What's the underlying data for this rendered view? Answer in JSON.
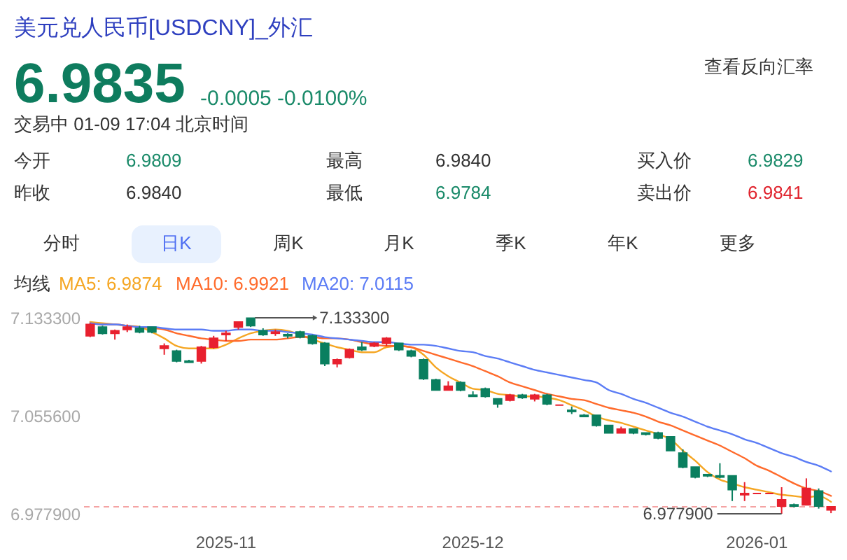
{
  "chart_data": [
    {
      "type": "other",
      "title": "美元兑人民币[USDCNY]_外汇",
      "annotations": [
        "6.9835",
        "-0.0005 -0.0100%",
        "交易中 01-09 17:04 北京时间",
        "查看反向汇率",
        "今开",
        "6.9809",
        "最高",
        "6.9840",
        "买入价",
        "6.9829",
        "昨收",
        "6.9840",
        "最低",
        "6.9784",
        "卖出价",
        "6.9841",
        "分时",
        "日K",
        "周K",
        "月K",
        "季K",
        "年K",
        "更多"
      ]
    },
    {
      "type": "candlestick",
      "categories": [
        null,
        null,
        null,
        null,
        null,
        null,
        null,
        null,
        null,
        null,
        null,
        "2025-11",
        null,
        null,
        null,
        null,
        null,
        null,
        null,
        null,
        null,
        null,
        null,
        null,
        null,
        null,
        null,
        null,
        null,
        null,
        null,
        "2025-12",
        null,
        null,
        null,
        null,
        null,
        null,
        null,
        null,
        null,
        null,
        null,
        null,
        null,
        null,
        null,
        null,
        null,
        null,
        null,
        null,
        null,
        null,
        "2026-01",
        null,
        null,
        null,
        null,
        null,
        null
      ],
      "ohlc": [
        [
          7.119,
          7.129,
          7.118,
          7.128
        ],
        [
          7.126,
          7.127,
          7.12,
          7.121
        ],
        [
          7.121,
          7.124,
          7.116,
          7.123
        ],
        [
          7.124,
          7.128,
          7.122,
          7.126
        ],
        [
          7.125,
          7.127,
          7.121,
          7.122
        ],
        [
          7.126,
          7.126,
          7.121,
          7.122
        ],
        [
          7.109,
          7.113,
          7.104,
          7.111
        ],
        [
          7.107,
          7.108,
          7.098,
          7.099
        ],
        [
          7.099,
          7.1,
          7.098,
          7.098
        ],
        [
          7.099,
          7.111,
          7.097,
          7.11
        ],
        [
          7.11,
          7.119,
          7.109,
          7.117
        ],
        [
          7.12,
          7.123,
          7.115,
          7.121
        ],
        [
          7.126,
          7.13,
          7.124,
          7.13
        ],
        [
          7.133,
          7.1333,
          7.126,
          7.127
        ],
        [
          7.123,
          7.125,
          7.119,
          7.12
        ],
        [
          7.121,
          7.124,
          7.119,
          7.122
        ],
        [
          7.12,
          7.121,
          7.117,
          7.119
        ],
        [
          7.122,
          7.123,
          7.117,
          7.118
        ],
        [
          7.119,
          7.12,
          7.112,
          7.113
        ],
        [
          7.113,
          7.114,
          7.095,
          7.097
        ],
        [
          7.097,
          7.101,
          7.094,
          7.1
        ],
        [
          7.102,
          7.109,
          7.101,
          7.108
        ],
        [
          7.11,
          7.114,
          7.107,
          7.108
        ],
        [
          7.111,
          7.114,
          7.11,
          7.113
        ],
        [
          7.113,
          7.118,
          7.111,
          7.117
        ],
        [
          7.113,
          7.113,
          7.107,
          7.108
        ],
        [
          7.107,
          7.108,
          7.102,
          7.103
        ],
        [
          7.1,
          7.101,
          7.084,
          7.085
        ],
        [
          7.084,
          7.085,
          7.076,
          7.076
        ],
        [
          7.076,
          7.083,
          7.076,
          7.079
        ],
        [
          7.082,
          7.083,
          7.075,
          7.076
        ],
        [
          7.072,
          7.075,
          7.071,
          7.071
        ],
        [
          7.077,
          7.078,
          7.07,
          7.071
        ],
        [
          7.069,
          7.069,
          7.062,
          7.065
        ],
        [
          7.068,
          7.073,
          7.067,
          7.072
        ],
        [
          7.072,
          7.073,
          7.069,
          7.07
        ],
        [
          7.069,
          7.073,
          7.067,
          7.072
        ],
        [
          7.072,
          7.073,
          7.064,
          7.065
        ],
        [
          7.064,
          7.064,
          7.064,
          7.064
        ],
        [
          7.06,
          7.063,
          7.057,
          7.059
        ],
        [
          7.056,
          7.057,
          7.055,
          7.055
        ],
        [
          7.056,
          7.056,
          7.047,
          7.048
        ],
        [
          7.048,
          7.048,
          7.042,
          7.042
        ],
        [
          7.042,
          7.047,
          7.042,
          7.045
        ],
        [
          7.045,
          7.045,
          7.041,
          7.042
        ],
        [
          7.042,
          7.042,
          7.04,
          7.041
        ],
        [
          7.042,
          7.043,
          7.037,
          7.038
        ],
        [
          7.039,
          7.039,
          7.028,
          7.028
        ],
        [
          7.026,
          7.029,
          7.014,
          7.015
        ],
        [
          7.015,
          7.015,
          7.006,
          7.007
        ],
        [
          7.009,
          7.009,
          7.007,
          7.008
        ],
        [
          7.008,
          7.018,
          7.006,
          7.007
        ],
        [
          7.008,
          7.008,
          6.988,
          6.997
        ],
        [
          6.993,
          7.003,
          6.988,
          6.994
        ],
        [
          6.994,
          6.994,
          6.994,
          6.994
        ],
        [
          6.994,
          6.994,
          6.994,
          6.994
        ],
        [
          6.984,
          6.999,
          6.9779,
          6.989
        ],
        [
          6.985,
          6.986,
          6.983,
          6.984
        ],
        [
          6.985,
          7.006,
          6.985,
          6.998
        ],
        [
          6.996,
          6.998,
          6.982,
          6.984
        ],
        [
          6.9809,
          6.984,
          6.9784,
          6.9835
        ]
      ],
      "colors": [
        "#e8202e",
        "#0a7f5f",
        "#e8202e",
        "#e8202e",
        "#0a7f5f",
        "#0a7f5f",
        "#e8202e",
        "#0a7f5f",
        "#0a7f5f",
        "#e8202e",
        "#e8202e",
        "#e8202e",
        "#e8202e",
        "#0a7f5f",
        "#0a7f5f",
        "#e8202e",
        "#0a7f5f",
        "#0a7f5f",
        "#0a7f5f",
        "#0a7f5f",
        "#e8202e",
        "#e8202e",
        "#0a7f5f",
        "#e8202e",
        "#e8202e",
        "#0a7f5f",
        "#0a7f5f",
        "#0a7f5f",
        "#0a7f5f",
        "#e8202e",
        "#0a7f5f",
        "#0a7f5f",
        "#0a7f5f",
        "#0a7f5f",
        "#e8202e",
        "#0a7f5f",
        "#e8202e",
        "#0a7f5f",
        "#e8202e",
        "#0a7f5f",
        "#0a7f5f",
        "#0a7f5f",
        "#0a7f5f",
        "#e8202e",
        "#0a7f5f",
        "#0a7f5f",
        "#0a7f5f",
        "#0a7f5f",
        "#0a7f5f",
        "#0a7f5f",
        "#0a7f5f",
        "#0a7f5f",
        "#0a7f5f",
        "#e8202e",
        "#e8202e",
        "#e8202e",
        "#e8202e",
        "#0a7f5f",
        "#e8202e",
        "#0a7f5f",
        "#e8202e"
      ],
      "series": [
        {
          "type": "line",
          "name": "MA5: 6.9874",
          "color": "#f5a623",
          "values": [
            7.13,
            7.129,
            7.128,
            7.127,
            7.126,
            7.122,
            7.117,
            7.111,
            7.109,
            7.109,
            7.109,
            7.112,
            7.117,
            7.121,
            7.123,
            7.124,
            7.123,
            7.12,
            7.116,
            7.113,
            7.11,
            7.108,
            7.106,
            7.106,
            7.11,
            7.111,
            7.11,
            7.104,
            7.094,
            7.087,
            7.082,
            7.077,
            7.076,
            7.073,
            7.072,
            7.071,
            7.071,
            7.07,
            7.068,
            7.064,
            7.06,
            7.055,
            7.052,
            7.05,
            7.047,
            7.044,
            7.041,
            7.037,
            7.028,
            7.02,
            7.011,
            7.005,
            7.002,
            6.999,
            6.997,
            6.995,
            6.993,
            6.992,
            6.991,
            6.992,
            6.9874
          ]
        },
        {
          "type": "line",
          "name": "MA10: 6.9921",
          "color": "#ff6a2b",
          "values": [
            7.129,
            7.128,
            7.128,
            7.127,
            7.126,
            7.125,
            7.124,
            7.121,
            7.119,
            7.117,
            7.116,
            7.115,
            7.115,
            7.116,
            7.116,
            7.116,
            7.117,
            7.118,
            7.118,
            7.117,
            7.117,
            7.116,
            7.114,
            7.112,
            7.111,
            7.111,
            7.11,
            7.107,
            7.104,
            7.101,
            7.098,
            7.095,
            7.091,
            7.087,
            7.082,
            7.079,
            7.076,
            7.073,
            7.071,
            7.069,
            7.068,
            7.065,
            7.062,
            7.06,
            7.058,
            7.055,
            7.051,
            7.048,
            7.044,
            7.04,
            7.036,
            7.032,
            7.027,
            7.022,
            7.016,
            7.012,
            7.007,
            7.002,
            6.998,
            6.996,
            6.9921
          ]
        },
        {
          "type": "line",
          "name": "MA20: 7.0115",
          "color": "#5b7cf5",
          "values": [
            7.129,
            7.128,
            7.128,
            7.127,
            7.126,
            7.126,
            7.125,
            7.124,
            7.124,
            7.124,
            7.123,
            7.123,
            7.124,
            7.124,
            7.123,
            7.123,
            7.122,
            7.121,
            7.12,
            7.118,
            7.117,
            7.116,
            7.115,
            7.114,
            7.114,
            7.113,
            7.112,
            7.112,
            7.111,
            7.109,
            7.107,
            7.106,
            7.103,
            7.101,
            7.098,
            7.095,
            7.092,
            7.09,
            7.088,
            7.086,
            7.084,
            7.082,
            7.076,
            7.073,
            7.069,
            7.066,
            7.062,
            7.058,
            7.055,
            7.051,
            7.047,
            7.044,
            7.041,
            7.037,
            7.034,
            7.03,
            7.026,
            7.023,
            7.019,
            7.016,
            7.0115
          ]
        }
      ],
      "legend": "top left",
      "legend_title": "均线",
      "ylim": [
        6.9779,
        7.1333
      ],
      "yticks": [
        {
          "value": 6.9779,
          "label": "6.977900"
        },
        {
          "value": 7.0556,
          "label": "7.055600"
        },
        {
          "value": 7.1333,
          "label": "7.133300"
        }
      ],
      "grid": false,
      "annotations": [
        "7.133300",
        "6.977900"
      ],
      "ref_lines": [
        {
          "axis": "y",
          "value": 6.9835,
          "color": "#f4a3a3",
          "line_style": "dashed"
        }
      ]
    }
  ]
}
